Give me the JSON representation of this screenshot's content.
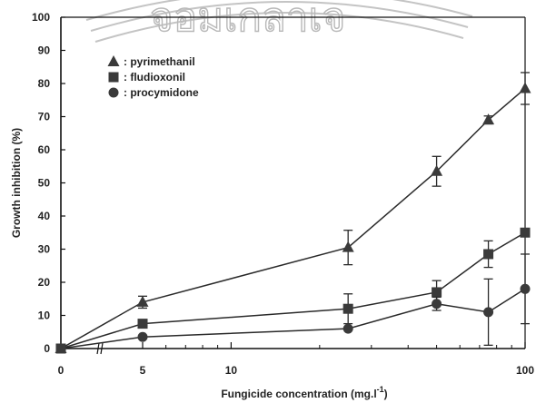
{
  "chart_data": {
    "type": "line",
    "title": "",
    "xlabel": "Fungicide concentration (mg.l",
    "xlabel_superscript": "-1",
    "xlabel_close": ")",
    "ylabel": "Growth inhibition (%)",
    "x_ticks": [
      "0",
      "5",
      "10",
      "100"
    ],
    "y_ticks": [
      0,
      10,
      20,
      30,
      40,
      50,
      60,
      70,
      80,
      90,
      100
    ],
    "ylim": [
      0,
      100
    ],
    "x_scale": "log (broken axis with 0)",
    "legend_position": "top-left",
    "series": [
      {
        "name": ": pyrimethanil",
        "marker": "triangle",
        "x": [
          0,
          5,
          25,
          50,
          75,
          100
        ],
        "values": [
          0,
          14,
          30.5,
          53.5,
          69,
          78.5
        ],
        "errors": [
          0,
          1.8,
          5.2,
          4.5,
          1.2,
          4.8
        ]
      },
      {
        "name": ": fludioxonil",
        "marker": "square",
        "x": [
          0,
          5,
          25,
          50,
          75,
          100
        ],
        "values": [
          0,
          7.5,
          12,
          17,
          28.5,
          35
        ],
        "errors": [
          0,
          0.5,
          4.5,
          3.5,
          4,
          0
        ]
      },
      {
        "name": ": procymidone",
        "marker": "circle",
        "x": [
          0,
          5,
          25,
          50,
          75,
          100
        ],
        "values": [
          0,
          3.5,
          6,
          13.5,
          11,
          18
        ],
        "errors": [
          0,
          0,
          0,
          2,
          10,
          10.5
        ]
      }
    ]
  },
  "watermark_text": "จอมเกลาเจ"
}
